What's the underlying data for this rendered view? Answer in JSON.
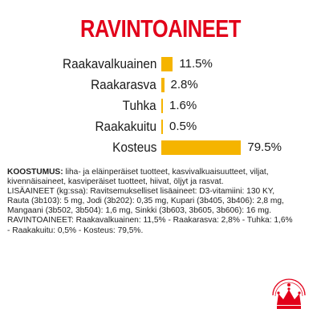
{
  "title": "RAVINTOAINEET",
  "colors": {
    "title": "#e2001a",
    "bar": "#f5b400",
    "text": "#1a1a1a",
    "logo": "#e2001a"
  },
  "nutrients": [
    {
      "label": "Raakavalkuainen",
      "value_text": "11.5%",
      "percent": 11.5
    },
    {
      "label": "Raakarasva",
      "value_text": "2.8%",
      "percent": 2.8
    },
    {
      "label": "Tuhka",
      "value_text": "1.6%",
      "percent": 1.6
    },
    {
      "label": "Raakakuitu",
      "value_text": "0.5%",
      "percent": 0.5
    },
    {
      "label": "Kosteus",
      "value_text": "79.5%",
      "percent": 79.5
    }
  ],
  "composition": {
    "heading": "KOOSTUMUS:",
    "ingredients": " liha- ja eläinperäiset tuotteet, kasvivalkuaisuutteet, viljat, kivennäisaineet, kasviperäiset tuotteet, hiivat, öljyt ja rasvat.",
    "additives": "LISÄAINEET (kg:ssa): Ravitsemukselliset lisäaineet: D3-vitamiini: 130 KY, Rauta (3b103): 5 mg, Jodi (3b202): 0,35 mg, Kupari (3b405, 3b406): 2,8 mg, Mangaani (3b502, 3b504): 1,6 mg, Sinkki (3b603, 3b605, 3b606): 16 mg.",
    "analysis": "RAVINTOAINEET: Raakavalkuainen: 11,5% - Raakarasva: 2,8% - Tuhka: 1,6% - Raakakuitu: 0,5% - Kosteus: 79,5%."
  },
  "logo_icon": "royal-canin-crown-icon"
}
